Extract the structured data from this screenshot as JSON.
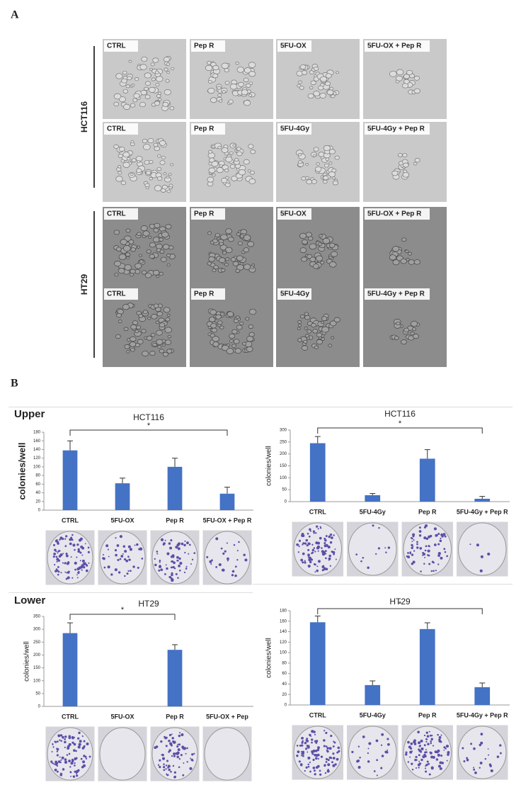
{
  "panel_a": {
    "label": "A",
    "groups": [
      {
        "name": "HCT116",
        "rows": [
          [
            "CTRL",
            "Pep R",
            "5FU-OX",
            "5FU-OX + Pep R"
          ],
          [
            "CTRL",
            "Pep R",
            "5FU-4Gy",
            "5FU-4Gy + Pep R"
          ]
        ]
      },
      {
        "name": "HT29",
        "rows": [
          [
            "CTRL",
            "Pep R",
            "5FU-OX",
            "5FU-OX + Pep R"
          ],
          [
            "CTRL",
            "Pep R",
            "5FU-4Gy",
            "5FU-4Gy + Pep R"
          ]
        ]
      }
    ]
  },
  "panel_b": {
    "label": "B",
    "sections": [
      "Upper",
      "Lower"
    ]
  },
  "chart_data": [
    {
      "type": "bar",
      "title": "HCT116",
      "ylabel": "colonies/well",
      "color": "#4472c4",
      "categories": [
        "CTRL",
        "5FU-OX",
        "Pep R",
        "5FU-OX + Pep R"
      ],
      "values": [
        138,
        62,
        100,
        38
      ],
      "errors": [
        22,
        12,
        20,
        15
      ],
      "ylim": [
        0,
        180
      ],
      "yticks": [
        0,
        20,
        40,
        60,
        80,
        100,
        120,
        140,
        160,
        180
      ],
      "significance": {
        "label": "*",
        "from": "CTRL",
        "to": "5FU-OX + Pep R"
      }
    },
    {
      "type": "bar",
      "title": "HCT116",
      "ylabel": "colonies/well",
      "color": "#4472c4",
      "categories": [
        "CTRL",
        "5FU-4Gy",
        "Pep R",
        "5FU-4Gy + Pep R"
      ],
      "values": [
        245,
        27,
        180,
        12
      ],
      "errors": [
        28,
        7,
        38,
        10
      ],
      "ylim": [
        0,
        300
      ],
      "yticks": [
        0,
        50,
        100,
        150,
        200,
        250,
        300
      ],
      "significance": {
        "label": "*",
        "from": "CTRL",
        "to": "5FU-4Gy + Pep R"
      }
    },
    {
      "type": "bar",
      "title": "HT29",
      "ylabel": "colonies/well",
      "color": "#4472c4",
      "categories": [
        "CTRL",
        "5FU-OX",
        "Pep R",
        "5FU-OX + Pep"
      ],
      "values": [
        285,
        0,
        220,
        0
      ],
      "errors": [
        40,
        0,
        20,
        0
      ],
      "ylim": [
        0,
        350
      ],
      "yticks": [
        0,
        50,
        100,
        150,
        200,
        250,
        300,
        350
      ],
      "significance": {
        "label": "*",
        "from": "CTRL",
        "to": "Pep R"
      }
    },
    {
      "type": "bar",
      "title": "HT29",
      "ylabel": "colonies/well",
      "color": "#4472c4",
      "categories": [
        "CTRL",
        "5FU-4Gy",
        "Pep R",
        "5FU-4Gy + Pep R"
      ],
      "values": [
        158,
        38,
        145,
        34
      ],
      "errors": [
        12,
        8,
        12,
        8
      ],
      "ylim": [
        0,
        180
      ],
      "yticks": [
        0,
        20,
        40,
        60,
        80,
        100,
        120,
        140,
        160,
        180
      ],
      "significance": {
        "label": "*",
        "from": "CTRL",
        "to": "5FU-4Gy + Pep R"
      }
    }
  ]
}
